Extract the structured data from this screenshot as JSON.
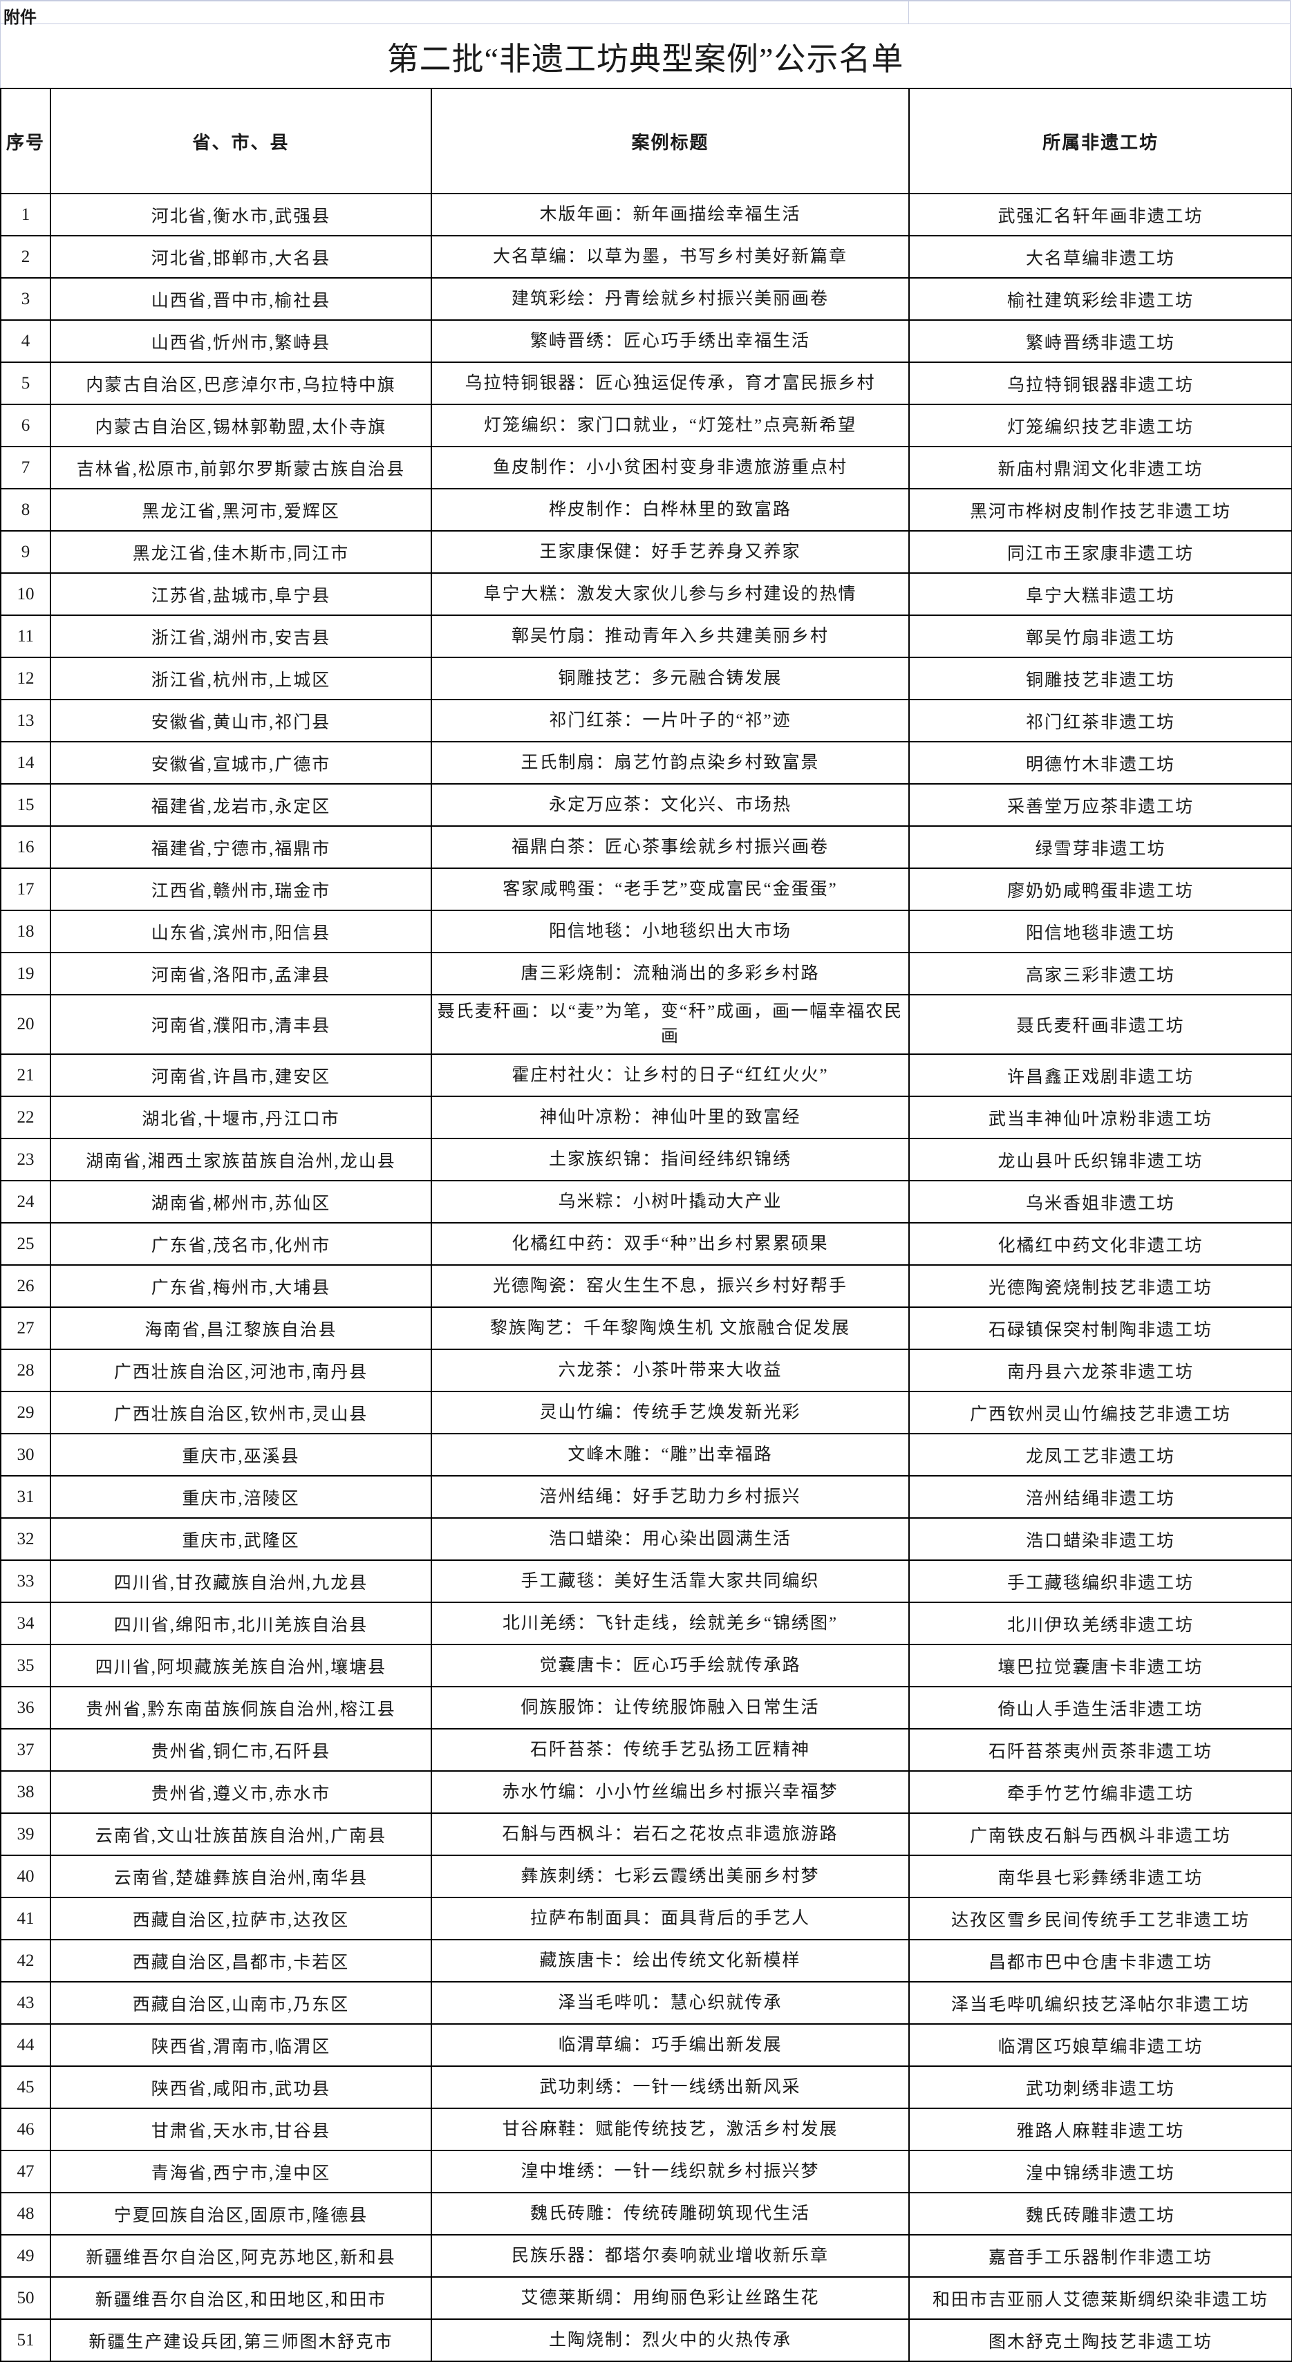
{
  "attachment_label": "附件",
  "title": "第二批“非遗工坊典型案例”公示名单",
  "headers": {
    "no": "序号",
    "region": "省、市、县",
    "case_title": "案例标题",
    "workshop": "所属非遗工坊"
  },
  "rows": [
    [
      "1",
      "河北省,衡水市,武强县",
      "木版年画：新年画描绘幸福生活",
      "武强汇名轩年画非遗工坊"
    ],
    [
      "2",
      "河北省,邯郸市,大名县",
      "大名草编：以草为墨，书写乡村美好新篇章",
      "大名草编非遗工坊"
    ],
    [
      "3",
      "山西省,晋中市,榆社县",
      "建筑彩绘：丹青绘就乡村振兴美丽画卷",
      "榆社建筑彩绘非遗工坊"
    ],
    [
      "4",
      "山西省,忻州市,繁峙县",
      "繁峙晋绣：匠心巧手绣出幸福生活",
      "繁峙晋绣非遗工坊"
    ],
    [
      "5",
      "内蒙古自治区,巴彦淖尔市,乌拉特中旗",
      "乌拉特铜银器：匠心独运促传承，育才富民振乡村",
      "乌拉特铜银器非遗工坊"
    ],
    [
      "6",
      "内蒙古自治区,锡林郭勒盟,太仆寺旗",
      "灯笼编织：家门口就业，“灯笼杜”点亮新希望",
      "灯笼编织技艺非遗工坊"
    ],
    [
      "7",
      "吉林省,松原市,前郭尔罗斯蒙古族自治县",
      "鱼皮制作：小小贫困村变身非遗旅游重点村",
      "新庙村鼎润文化非遗工坊"
    ],
    [
      "8",
      "黑龙江省,黑河市,爱辉区",
      "桦皮制作：白桦林里的致富路",
      "黑河市桦树皮制作技艺非遗工坊"
    ],
    [
      "9",
      "黑龙江省,佳木斯市,同江市",
      "王家康保健：好手艺养身又养家",
      "同江市王家康非遗工坊"
    ],
    [
      "10",
      "江苏省,盐城市,阜宁县",
      "阜宁大糕：激发大家伙儿参与乡村建设的热情",
      "阜宁大糕非遗工坊"
    ],
    [
      "11",
      "浙江省,湖州市,安吉县",
      "鄣吴竹扇：推动青年入乡共建美丽乡村",
      "鄣吴竹扇非遗工坊"
    ],
    [
      "12",
      "浙江省,杭州市,上城区",
      "铜雕技艺：多元融合铸发展",
      "铜雕技艺非遗工坊"
    ],
    [
      "13",
      "安徽省,黄山市,祁门县",
      "祁门红茶：一片叶子的“祁”迹",
      "祁门红茶非遗工坊"
    ],
    [
      "14",
      "安徽省,宣城市,广德市",
      "王氏制扇：扇艺竹韵点染乡村致富景",
      "明德竹木非遗工坊"
    ],
    [
      "15",
      "福建省,龙岩市,永定区",
      "永定万应茶：文化兴、市场热",
      "采善堂万应茶非遗工坊"
    ],
    [
      "16",
      "福建省,宁德市,福鼎市",
      "福鼎白茶：匠心茶事绘就乡村振兴画卷",
      "绿雪芽非遗工坊"
    ],
    [
      "17",
      "江西省,赣州市,瑞金市",
      "客家咸鸭蛋：“老手艺”变成富民“金蛋蛋”",
      "廖奶奶咸鸭蛋非遗工坊"
    ],
    [
      "18",
      "山东省,滨州市,阳信县",
      "阳信地毯：小地毯织出大市场",
      "阳信地毯非遗工坊"
    ],
    [
      "19",
      "河南省,洛阳市,孟津县",
      "唐三彩烧制：流釉淌出的多彩乡村路",
      "高家三彩非遗工坊"
    ],
    [
      "20",
      "河南省,濮阳市,清丰县",
      "聂氏麦秆画：以“麦”为笔，变“秆”成画，画一幅幸福农民画",
      "聂氏麦秆画非遗工坊"
    ],
    [
      "21",
      "河南省,许昌市,建安区",
      "霍庄村社火：让乡村的日子“红红火火”",
      "许昌鑫正戏剧非遗工坊"
    ],
    [
      "22",
      "湖北省,十堰市,丹江口市",
      "神仙叶凉粉：神仙叶里的致富经",
      "武当丰神仙叶凉粉非遗工坊"
    ],
    [
      "23",
      "湖南省,湘西土家族苗族自治州,龙山县",
      "土家族织锦：指间经纬织锦绣",
      "龙山县叶氏织锦非遗工坊"
    ],
    [
      "24",
      "湖南省,郴州市,苏仙区",
      "乌米粽：小树叶撬动大产业",
      "乌米香姐非遗工坊"
    ],
    [
      "25",
      "广东省,茂名市,化州市",
      "化橘红中药：双手“种”出乡村累累硕果",
      "化橘红中药文化非遗工坊"
    ],
    [
      "26",
      "广东省,梅州市,大埔县",
      "光德陶瓷：窑火生生不息，振兴乡村好帮手",
      "光德陶瓷烧制技艺非遗工坊"
    ],
    [
      "27",
      "海南省,昌江黎族自治县",
      "黎族陶艺：千年黎陶焕生机 文旅融合促发展",
      "石碌镇保突村制陶非遗工坊"
    ],
    [
      "28",
      "广西壮族自治区,河池市,南丹县",
      "六龙茶：小茶叶带来大收益",
      "南丹县六龙茶非遗工坊"
    ],
    [
      "29",
      "广西壮族自治区,钦州市,灵山县",
      "灵山竹编：传统手艺焕发新光彩",
      "广西钦州灵山竹编技艺非遗工坊"
    ],
    [
      "30",
      "重庆市,巫溪县",
      "文峰木雕：“雕”出幸福路",
      "龙凤工艺非遗工坊"
    ],
    [
      "31",
      "重庆市,涪陵区",
      "涪州结绳：好手艺助力乡村振兴",
      "涪州结绳非遗工坊"
    ],
    [
      "32",
      "重庆市,武隆区",
      "浩口蜡染：用心染出圆满生活",
      "浩口蜡染非遗工坊"
    ],
    [
      "33",
      "四川省,甘孜藏族自治州,九龙县",
      "手工藏毯：美好生活靠大家共同编织",
      "手工藏毯编织非遗工坊"
    ],
    [
      "34",
      "四川省,绵阳市,北川羌族自治县",
      "北川羌绣：飞针走线，绘就羌乡“锦绣图”",
      "北川伊玖羌绣非遗工坊"
    ],
    [
      "35",
      "四川省,阿坝藏族羌族自治州,壤塘县",
      "觉囊唐卡：匠心巧手绘就传承路",
      "壤巴拉觉囊唐卡非遗工坊"
    ],
    [
      "36",
      "贵州省,黔东南苗族侗族自治州,榕江县",
      "侗族服饰：让传统服饰融入日常生活",
      "倚山人手造生活非遗工坊"
    ],
    [
      "37",
      "贵州省,铜仁市,石阡县",
      "石阡苔茶：传统手艺弘扬工匠精神",
      "石阡苔茶夷州贡茶非遗工坊"
    ],
    [
      "38",
      "贵州省,遵义市,赤水市",
      "赤水竹编：小小竹丝编出乡村振兴幸福梦",
      "牵手竹艺竹编非遗工坊"
    ],
    [
      "39",
      "云南省,文山壮族苗族自治州,广南县",
      "石斛与西枫斗：岩石之花妆点非遗旅游路",
      "广南铁皮石斛与西枫斗非遗工坊"
    ],
    [
      "40",
      "云南省,楚雄彝族自治州,南华县",
      "彝族刺绣：七彩云霞绣出美丽乡村梦",
      "南华县七彩彝绣非遗工坊"
    ],
    [
      "41",
      "西藏自治区,拉萨市,达孜区",
      "拉萨布制面具：面具背后的手艺人",
      "达孜区雪乡民间传统手工艺非遗工坊"
    ],
    [
      "42",
      "西藏自治区,昌都市,卡若区",
      "藏族唐卡：绘出传统文化新模样",
      "昌都市巴中仓唐卡非遗工坊"
    ],
    [
      "43",
      "西藏自治区,山南市,乃东区",
      "泽当毛哔叽：慧心织就传承",
      "泽当毛哔叽编织技艺泽帖尔非遗工坊"
    ],
    [
      "44",
      "陕西省,渭南市,临渭区",
      "临渭草编：巧手编出新发展",
      "临渭区巧娘草编非遗工坊"
    ],
    [
      "45",
      "陕西省,咸阳市,武功县",
      "武功刺绣：一针一线绣出新风采",
      "武功刺绣非遗工坊"
    ],
    [
      "46",
      "甘肃省,天水市,甘谷县",
      "甘谷麻鞋：赋能传统技艺，激活乡村发展",
      "雅路人麻鞋非遗工坊"
    ],
    [
      "47",
      "青海省,西宁市,湟中区",
      "湟中堆绣：一针一线织就乡村振兴梦",
      "湟中锦绣非遗工坊"
    ],
    [
      "48",
      "宁夏回族自治区,固原市,隆德县",
      "魏氏砖雕：传统砖雕砌筑现代生活",
      "魏氏砖雕非遗工坊"
    ],
    [
      "49",
      "新疆维吾尔自治区,阿克苏地区,新和县",
      "民族乐器：都塔尔奏响就业增收新乐章",
      "嘉音手工乐器制作非遗工坊"
    ],
    [
      "50",
      "新疆维吾尔自治区,和田地区,和田市",
      "艾德莱斯绸：用绚丽色彩让丝路生花",
      "和田市吉亚丽人艾德莱斯绸织染非遗工坊"
    ],
    [
      "51",
      "新疆生产建设兵团,第三师图木舒克市",
      "土陶烧制：烈火中的火热传承",
      "图木舒克土陶技艺非遗工坊"
    ]
  ]
}
